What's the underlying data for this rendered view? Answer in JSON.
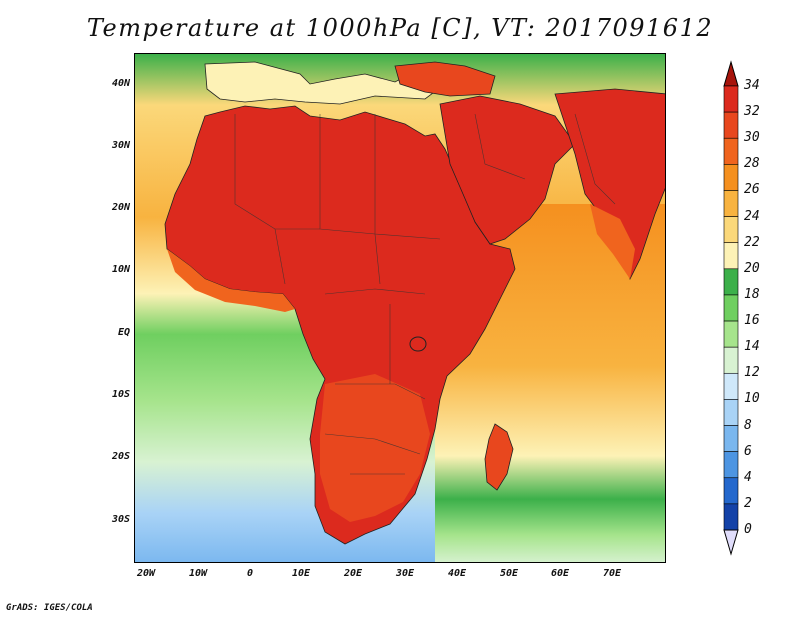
{
  "title": "Temperature at 1000hPa [C], VT: 2017091612",
  "footer": "GrADS: IGES/COLA",
  "map": {
    "lon_range": [
      -23,
      80
    ],
    "lat_range": [
      -37,
      45
    ],
    "lat_labels": [
      "40N",
      "30N",
      "20N",
      "10N",
      "EQ",
      "10S",
      "20S",
      "30S"
    ],
    "lon_labels": [
      "20W",
      "10W",
      "0",
      "10E",
      "20E",
      "30E",
      "40E",
      "50E",
      "60E",
      "70E"
    ],
    "ocean_fill": "gradient by latitude"
  },
  "colorbar": {
    "labels": [
      "34",
      "32",
      "30",
      "28",
      "26",
      "24",
      "22",
      "20",
      "18",
      "16",
      "14",
      "12",
      "10",
      "8",
      "6",
      "4",
      "2",
      "0"
    ],
    "colors": [
      "#dc2a1e",
      "#e8471e",
      "#f0641e",
      "#f5901f",
      "#f8b340",
      "#fbd87a",
      "#fdf2b6",
      "#3cb04a",
      "#6fcf60",
      "#a6e48c",
      "#d8f2d2",
      "#cfe8fa",
      "#a9d3f6",
      "#7ab7ef",
      "#4d95e2",
      "#2468cd",
      "#1342a8",
      "#0a1f6e"
    ],
    "over_color": "#a7140c",
    "under_color": "#e0ddfb"
  }
}
